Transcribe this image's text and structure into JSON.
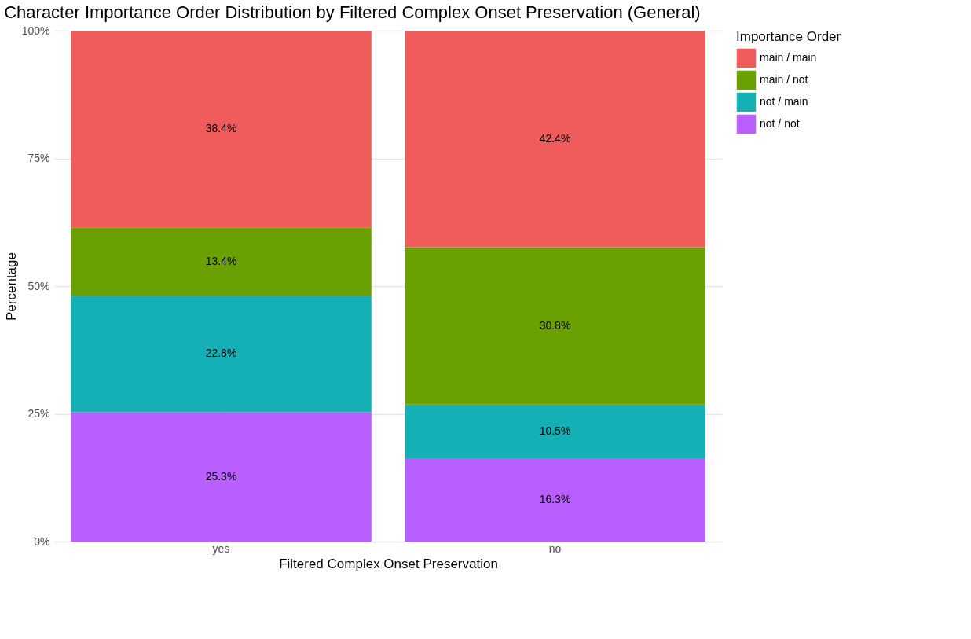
{
  "chart_data": {
    "type": "bar",
    "stacked": true,
    "title": "Character Importance Order Distribution by Filtered Complex Onset Preservation (General)",
    "xlabel": "Filtered Complex Onset Preservation",
    "ylabel": "Percentage",
    "legend_title": "Importance Order",
    "categories": [
      "yes",
      "no"
    ],
    "series": [
      {
        "name": "not / not",
        "color": "#b95fff",
        "values": [
          25.3,
          16.3
        ],
        "value_labels": [
          "25.3%",
          "16.3%"
        ]
      },
      {
        "name": "not / main",
        "color": "#15b0b6",
        "values": [
          22.8,
          10.5
        ],
        "value_labels": [
          "22.8%",
          "10.5%"
        ]
      },
      {
        "name": "main / not",
        "color": "#6aa100",
        "values": [
          13.4,
          30.8
        ],
        "value_labels": [
          "13.4%",
          "30.8%"
        ]
      },
      {
        "name": "main / main",
        "color": "#f05b5b",
        "values": [
          38.4,
          42.4
        ],
        "value_labels": [
          "38.4%",
          "42.4%"
        ]
      }
    ],
    "ylim": [
      0,
      100
    ],
    "yticks": [
      {
        "value": 0,
        "label": "0%"
      },
      {
        "value": 25,
        "label": "25%"
      },
      {
        "value": 50,
        "label": "50%"
      },
      {
        "value": 75,
        "label": "75%"
      },
      {
        "value": 100,
        "label": "100%"
      }
    ],
    "grid": true,
    "legend": "right"
  }
}
